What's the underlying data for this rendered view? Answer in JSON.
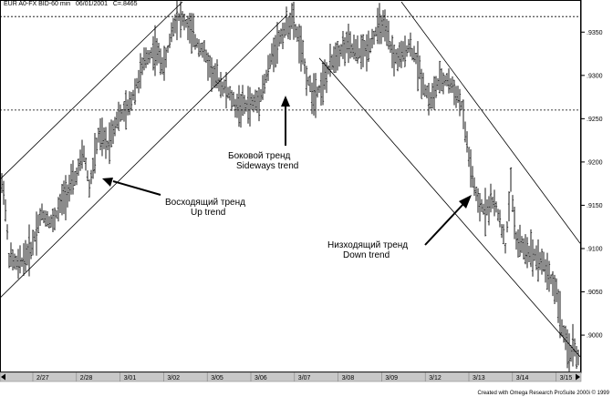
{
  "header": {
    "symbol": "EUR A0-FX BID-60 min",
    "date": "06/01/2001",
    "close": "C=.8465"
  },
  "credit": "Created with Omega Research ProSuite 2000i © 1999",
  "chart_data": {
    "type": "ohlc",
    "title": "",
    "xlabel": "",
    "ylabel": "",
    "ylim": [
      0.8958,
      0.9385
    ],
    "x_ticks": [
      "2/27",
      "2/28",
      "3/01",
      "3/02",
      "3/05",
      "3/06",
      "3/07",
      "3/08",
      "3/09",
      "3/12",
      "3/13",
      "3/14",
      "3/15"
    ],
    "y_ticks": [
      {
        "value": 0.935,
        "label": ".9350"
      },
      {
        "value": 0.93,
        "label": ".9300"
      },
      {
        "value": 0.925,
        "label": ".9250"
      },
      {
        "value": 0.92,
        "label": ".9200"
      },
      {
        "value": 0.915,
        "label": ".9150"
      },
      {
        "value": 0.91,
        "label": ".9100"
      },
      {
        "value": 0.905,
        "label": ".9050"
      },
      {
        "value": 0.9,
        "label": ".9000"
      }
    ],
    "resistance": 0.9368,
    "support": 0.926,
    "price_path": [
      [
        0,
        0.9175
      ],
      [
        4,
        0.917
      ],
      [
        10,
        0.909
      ],
      [
        20,
        0.908
      ],
      [
        34,
        0.91
      ],
      [
        45,
        0.914
      ],
      [
        58,
        0.913
      ],
      [
        70,
        0.916
      ],
      [
        82,
        0.918
      ],
      [
        92,
        0.921
      ],
      [
        98,
        0.917
      ],
      [
        108,
        0.923
      ],
      [
        118,
        0.922
      ],
      [
        128,
        0.925
      ],
      [
        140,
        0.926
      ],
      [
        150,
        0.929
      ],
      [
        160,
        0.932
      ],
      [
        170,
        0.933
      ],
      [
        180,
        0.931
      ],
      [
        188,
        0.935
      ],
      [
        194,
        0.937
      ],
      [
        204,
        0.936
      ],
      [
        214,
        0.934
      ],
      [
        222,
        0.933
      ],
      [
        234,
        0.93
      ],
      [
        242,
        0.929
      ],
      [
        250,
        0.928
      ],
      [
        258,
        0.9265
      ],
      [
        270,
        0.9265
      ],
      [
        282,
        0.927
      ],
      [
        290,
        0.929
      ],
      [
        300,
        0.933
      ],
      [
        310,
        0.935
      ],
      [
        320,
        0.9365
      ],
      [
        328,
        0.934
      ],
      [
        336,
        0.93
      ],
      [
        342,
        0.928
      ],
      [
        350,
        0.9285
      ],
      [
        358,
        0.93
      ],
      [
        368,
        0.9325
      ],
      [
        380,
        0.9335
      ],
      [
        392,
        0.9325
      ],
      [
        402,
        0.933
      ],
      [
        412,
        0.935
      ],
      [
        418,
        0.936
      ],
      [
        426,
        0.934
      ],
      [
        432,
        0.932
      ],
      [
        440,
        0.932
      ],
      [
        448,
        0.9335
      ],
      [
        456,
        0.932
      ],
      [
        464,
        0.929
      ],
      [
        472,
        0.927
      ],
      [
        480,
        0.929
      ],
      [
        490,
        0.9295
      ],
      [
        500,
        0.928
      ],
      [
        506,
        0.9265
      ],
      [
        512,
        0.922
      ],
      [
        518,
        0.918
      ],
      [
        524,
        0.915
      ],
      [
        532,
        0.9145
      ],
      [
        540,
        0.9155
      ],
      [
        548,
        0.9135
      ],
      [
        554,
        0.91
      ],
      [
        560,
        0.9175
      ],
      [
        566,
        0.911
      ],
      [
        574,
        0.91
      ],
      [
        584,
        0.9095
      ],
      [
        594,
        0.9085
      ],
      [
        602,
        0.907
      ],
      [
        610,
        0.905
      ],
      [
        616,
        0.901
      ],
      [
        622,
        0.898
      ],
      [
        630,
        0.8985
      ],
      [
        636,
        0.8965
      ]
    ],
    "trend_lines": [
      {
        "name": "up-lower",
        "from": [
          0,
          0.9043
        ],
        "to": [
          315,
          0.937
        ]
      },
      {
        "name": "up-upper",
        "from": [
          0,
          0.918
        ],
        "to": [
          200,
          0.9385
        ]
      },
      {
        "name": "down-upper",
        "from": [
          440,
          0.9385
        ],
        "to": [
          636,
          0.9106
        ]
      },
      {
        "name": "down-lower",
        "from": [
          350,
          0.932
        ],
        "to": [
          636,
          0.8975
        ]
      }
    ],
    "annotations": [
      {
        "id": "up",
        "ru": "Восходящий тренд",
        "en": "Up trend"
      },
      {
        "id": "side",
        "ru": "Боковой тренд",
        "en": "Sideways trend"
      },
      {
        "id": "down",
        "ru": "Низходящий тренд",
        "en": "Down trend"
      }
    ]
  }
}
